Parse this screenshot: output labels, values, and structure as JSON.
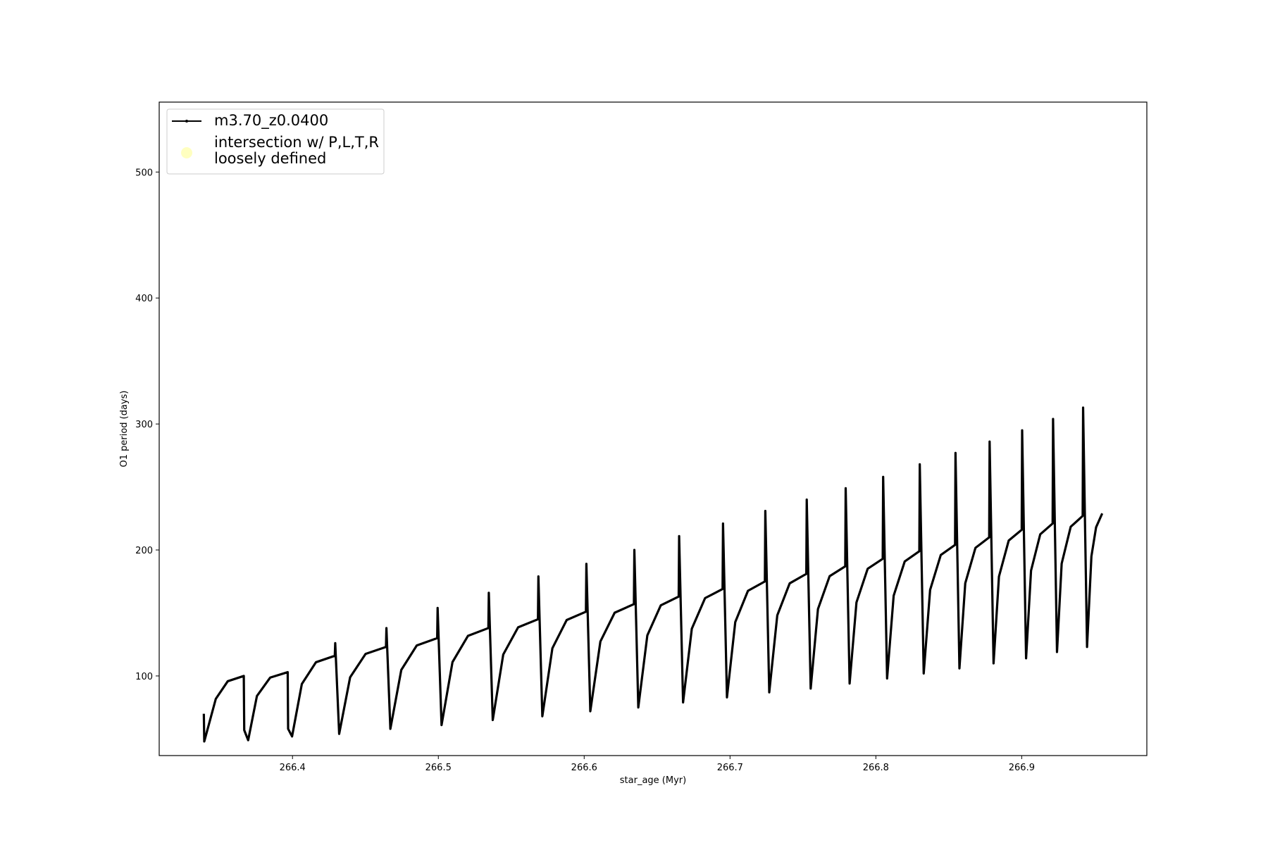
{
  "chart_data": {
    "type": "line",
    "xlabel": "star_age (Myr)",
    "ylabel": "O1 period (days)",
    "xlim": [
      266.3086,
      266.9858
    ],
    "ylim": [
      36.8,
      555.5
    ],
    "xticks": [
      266.4,
      266.5,
      266.6,
      266.7,
      266.8,
      266.9
    ],
    "yticks": [
      100,
      200,
      300,
      400,
      500
    ],
    "grid": false,
    "legend": "upper left",
    "series": [
      {
        "name": "m3.70_z0.0400",
        "color": "#000000",
        "x": [
          266.3392,
          266.3395,
          266.3474,
          266.3556,
          266.3666,
          266.3669,
          266.3696,
          266.3756,
          266.3847,
          266.3967,
          266.397,
          266.3997,
          266.4064,
          266.4161,
          266.429,
          266.4293,
          266.432,
          266.4395,
          266.4501,
          266.4641,
          266.4644,
          266.4671,
          266.4746,
          266.4852,
          266.4992,
          266.4995,
          266.5022,
          266.5097,
          266.5203,
          266.5343,
          266.5346,
          266.5373,
          266.5445,
          266.5547,
          266.5683,
          266.5686,
          266.5713,
          266.5782,
          266.588,
          266.6012,
          266.6015,
          266.6042,
          266.6111,
          266.6209,
          266.6341,
          266.6344,
          266.6371,
          266.6433,
          266.6525,
          266.6648,
          266.6651,
          266.6678,
          266.6738,
          266.6829,
          266.6949,
          266.6952,
          266.6979,
          266.7036,
          266.7123,
          266.7239,
          266.7242,
          266.7269,
          266.7324,
          266.7409,
          266.7523,
          266.7526,
          266.7553,
          266.7603,
          266.7683,
          266.779,
          266.7793,
          266.782,
          266.7867,
          266.7944,
          266.8047,
          266.805,
          266.8077,
          266.8122,
          266.8198,
          266.8298,
          266.8301,
          266.8328,
          266.8372,
          266.8445,
          266.8543,
          266.8546,
          266.8573,
          266.8613,
          266.8683,
          266.8777,
          266.878,
          266.8807,
          266.8844,
          266.8911,
          266.9,
          266.9003,
          266.903,
          266.9064,
          266.9127,
          266.9212,
          266.9215,
          266.9242,
          266.9274,
          266.9336,
          266.9418,
          266.9421,
          266.9448,
          266.9478,
          266.951,
          266.9552
        ],
        "values": [
          70,
          48,
          81.8,
          95.8,
          100,
          57,
          49,
          84.1,
          98.7,
          103,
          58,
          52,
          93.6,
          110.9,
          116,
          126,
          54,
          98.9,
          117.5,
          123,
          138,
          58,
          104.8,
          124.2,
          130,
          154,
          61,
          111,
          131.8,
          138,
          166,
          65,
          117,
          138.6,
          145,
          179,
          68,
          122,
          144.4,
          151,
          189,
          72,
          127.3,
          150.2,
          157,
          200,
          75,
          132.2,
          156,
          163,
          211,
          79,
          137.5,
          161.8,
          169,
          221,
          83,
          142.8,
          167.6,
          175,
          231,
          87,
          148.1,
          173.5,
          181,
          240,
          90,
          153.1,
          179.2,
          187,
          249,
          94,
          158.4,
          185.1,
          193,
          258,
          98,
          163.7,
          190.9,
          199,
          268,
          102,
          168.3,
          196,
          204,
          277,
          106,
          173.6,
          201.7,
          210,
          286,
          110,
          178.9,
          207.5,
          216,
          295,
          114,
          183.6,
          212.4,
          221,
          304,
          119,
          189.2,
          218.4,
          227,
          313,
          123,
          195,
          218,
          229
        ]
      },
      {
        "name": "intersection w/ P,L,T,R\nloosely defined",
        "color": "#ffffb0",
        "x": [],
        "values": []
      }
    ]
  }
}
